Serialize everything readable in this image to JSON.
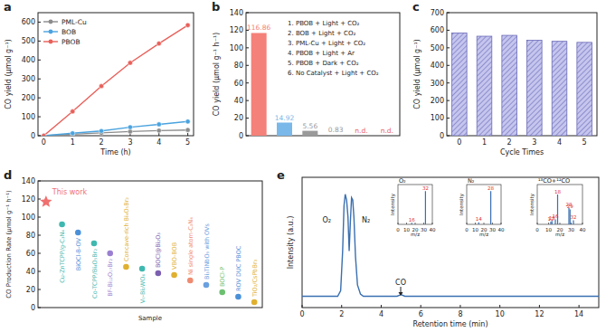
{
  "chart_data": [
    {
      "type": "line",
      "title": "a",
      "x": [
        0,
        1,
        2,
        3,
        4,
        5
      ],
      "xlim": [
        -0.2,
        5.2
      ],
      "xticks": [
        0,
        1,
        2,
        3,
        4,
        5
      ],
      "ylim": [
        0,
        650
      ],
      "yticks": [
        0,
        100,
        200,
        300,
        400,
        500,
        600
      ],
      "xlabel": "Time (h)",
      "ylabel": "CO yield (μmol g⁻¹)",
      "legend": "upper left",
      "marker": "circle",
      "series": [
        {
          "name": "PML-Cu",
          "color": "#8c8c8c",
          "values": [
            0,
            8,
            15,
            22,
            27,
            30
          ]
        },
        {
          "name": "BOB",
          "color": "#4aa3df",
          "values": [
            0,
            13,
            25,
            45,
            60,
            75
          ]
        },
        {
          "name": "PBOB",
          "color": "#e8605a",
          "values": [
            0,
            128,
            262,
            385,
            487,
            584
          ]
        }
      ]
    },
    {
      "type": "bar",
      "title": "b",
      "categories": [
        null,
        null,
        null,
        null,
        null,
        null
      ],
      "values": [
        116.86,
        14.92,
        5.56,
        0.83,
        null,
        null
      ],
      "value_labels": [
        "116.86",
        "14.92",
        "5.56",
        "0.83",
        "n.d.",
        "n.d."
      ],
      "colors": [
        "#f4817a",
        "#7ab8ea",
        "#9a9a9a",
        "#9a9a9a",
        "#e8605a",
        "#e8605a"
      ],
      "ylim": [
        0,
        140
      ],
      "yticks": [
        0,
        20,
        40,
        60,
        80,
        100,
        120,
        140
      ],
      "ylabel": "CO yield (μmol g⁻¹ h⁻¹)",
      "data_labels": true,
      "tick_labels": "y",
      "annotations": [
        "1. PBOB + Light + CO₂",
        "2. BOB + Light + CO₂",
        "3. PML-Cu + Light + CO₂",
        "4. PBOB + Light + Ar",
        "5. PBOB + Dark + CO₂",
        "6. No Catalyst + Light + CO₂"
      ]
    },
    {
      "type": "bar",
      "title": "c",
      "categories": [
        0,
        1,
        2,
        3,
        4,
        5
      ],
      "values": [
        584,
        566,
        571,
        543,
        537,
        531
      ],
      "color": "#c5c5ee",
      "ylim": [
        0,
        700
      ],
      "yticks": [
        0,
        100,
        200,
        300,
        400,
        500,
        600,
        700
      ],
      "xlabel": "Cycle Times",
      "ylabel": "CO yield (μmol g⁻¹)"
    },
    {
      "type": "scatter",
      "title": "d",
      "categories": [
        null,
        "Cu-ZnTCPP/g-C₃N₄",
        "BiOCl-B-OV",
        "Co-TCPP/Bi₄O₅Br₂",
        "BF-Bi₁₂O₁₇Br₂",
        "Concave-rich Bi₄O₅Br₂",
        "V₀-Bi₂WO₆",
        "BOCl@Bi₂O₃",
        "VBO-BOB",
        "Ni single atom-C₃N₄",
        "Bi₃TiNbO₉ with OVs",
        "BOCl-P",
        "ROV DUC PBOC",
        "TiO₂/CsPbBr₃"
      ],
      "ylim": [
        0,
        140
      ],
      "yticks": [
        0,
        20,
        40,
        60,
        80,
        100,
        120,
        140
      ],
      "xlabel": "Sample",
      "ylabel": "CO Production Rate (μmol g⁻¹ h⁻¹)",
      "tick_labels": "y",
      "series": [
        {
          "name": "This work",
          "color": "#f07070",
          "marker": "star",
          "values": [
            116.86,
            null,
            null,
            null,
            null,
            null,
            null,
            null,
            null,
            null,
            null,
            null,
            null,
            null
          ]
        },
        {
          "marker": "circle",
          "colors": [
            null,
            "#3fb8af",
            "#4a90d9",
            "#3fb8af",
            "#9a7fd1",
            "#e0b030",
            "#3fb8af",
            "#7a5fb0",
            "#e0b030",
            "#f08a70",
            "#6aa0e0",
            "#6cc070",
            "#4a90d9",
            "#e0b030"
          ],
          "values": [
            null,
            92,
            83,
            71,
            60,
            45,
            43,
            38,
            36,
            30,
            25,
            17,
            12,
            6
          ]
        }
      ]
    },
    {
      "type": "line",
      "title": "e",
      "x": [
        0,
        1,
        1.8,
        1.95,
        2.05,
        2.12,
        2.18,
        2.25,
        2.32,
        2.38,
        2.44,
        2.5,
        2.56,
        2.62,
        2.7,
        2.8,
        2.95,
        3.1,
        3.5,
        4.8,
        4.95,
        5.0,
        5.05,
        5.2,
        7,
        10,
        13,
        15
      ],
      "values": [
        0.1,
        0.1,
        0.1,
        0.15,
        0.5,
        0.9,
        1.0,
        0.95,
        0.8,
        0.5,
        0.75,
        0.97,
        0.95,
        0.8,
        0.45,
        0.2,
        0.12,
        0.1,
        0.1,
        0.1,
        0.11,
        0.12,
        0.11,
        0.1,
        0.1,
        0.1,
        0.1,
        0.1
      ],
      "color": "#3a6fb0",
      "xlim": [
        0,
        15
      ],
      "xticks": [
        0,
        2,
        4,
        6,
        8,
        10,
        12,
        14
      ],
      "ylim": [
        0,
        1.15
      ],
      "tick_labels": "x",
      "xlabel": "Retention time (min)",
      "ylabel": "Intensity (a.u.)",
      "annotations": [
        "O₂",
        "N₂",
        "CO"
      ]
    },
    {
      "type": "stem",
      "title": "O₂",
      "x": [
        16,
        32
      ],
      "values": [
        0.05,
        1
      ],
      "color": "#3a6fb0",
      "xlim": [
        0,
        40
      ],
      "xticks": [
        0,
        10,
        20,
        30,
        40
      ],
      "ylim": [
        0,
        1.2
      ],
      "tick_labels": "x",
      "xlabel": "m/z",
      "ylabel": "Intensity"
    },
    {
      "type": "stem",
      "title": "N₂",
      "x": [
        14,
        28
      ],
      "values": [
        0.06,
        1
      ],
      "color": "#3a6fb0",
      "xlim": [
        0,
        40
      ],
      "xticks": [
        0,
        10,
        20,
        30,
        40
      ],
      "ylim": [
        0,
        1.2
      ],
      "tick_labels": "x",
      "xlabel": "m/z",
      "ylabel": "Intensity"
    },
    {
      "type": "stem",
      "title": "¹³CO+¹²CO",
      "x": [
        12,
        13,
        16,
        18,
        28,
        29,
        32
      ],
      "values": [
        0.08,
        0.1,
        0.15,
        0.9,
        0.5,
        0.45,
        0.12
      ],
      "color": "#3a6fb0",
      "xlim": [
        0,
        40
      ],
      "xticks": [
        0,
        10,
        20,
        30,
        40
      ],
      "ylim": [
        0,
        1.2
      ],
      "tick_labels": "x",
      "xlabel": "m/z",
      "ylabel": "Intensity"
    }
  ]
}
